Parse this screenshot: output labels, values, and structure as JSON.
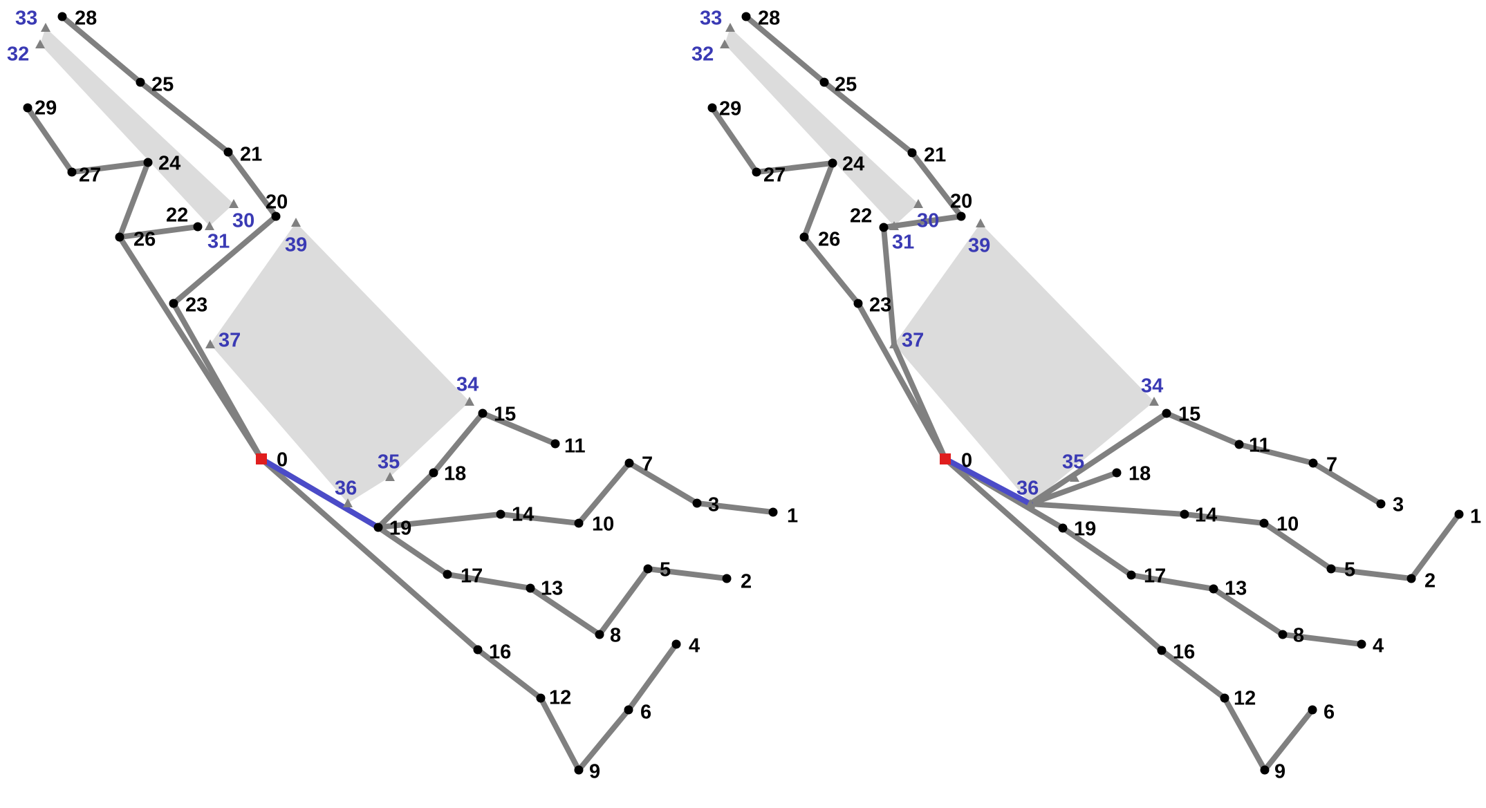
{
  "colors": {
    "edge": "#808080",
    "highlight_edge": "#4b4bc8",
    "region": "#dcdcdc",
    "node": "#000000",
    "triangle": "#808080",
    "root": "#e01e1e",
    "label": "#000000",
    "blue_label": "#3a3ab4"
  },
  "panels": [
    {
      "name": "left-panel",
      "nodes": [
        {
          "id": "0",
          "type": "root",
          "label": "0"
        },
        {
          "id": "1",
          "type": "dot",
          "label": "1"
        },
        {
          "id": "2",
          "type": "dot",
          "label": "2"
        },
        {
          "id": "3",
          "type": "dot",
          "label": "3"
        },
        {
          "id": "4",
          "type": "dot",
          "label": "4"
        },
        {
          "id": "5",
          "type": "dot",
          "label": "5"
        },
        {
          "id": "6",
          "type": "dot",
          "label": "6"
        },
        {
          "id": "7",
          "type": "dot",
          "label": "7"
        },
        {
          "id": "8",
          "type": "dot",
          "label": "8"
        },
        {
          "id": "9",
          "type": "dot",
          "label": "9"
        },
        {
          "id": "10",
          "type": "dot",
          "label": "10"
        },
        {
          "id": "11",
          "type": "dot",
          "label": "11"
        },
        {
          "id": "12",
          "type": "dot",
          "label": "12"
        },
        {
          "id": "13",
          "type": "dot",
          "label": "13"
        },
        {
          "id": "14",
          "type": "dot",
          "label": "14"
        },
        {
          "id": "15",
          "type": "dot",
          "label": "15"
        },
        {
          "id": "16",
          "type": "dot",
          "label": "16"
        },
        {
          "id": "17",
          "type": "dot",
          "label": "17"
        },
        {
          "id": "18",
          "type": "dot",
          "label": "18"
        },
        {
          "id": "19",
          "type": "dot",
          "label": "19"
        },
        {
          "id": "20",
          "type": "dot",
          "label": "20"
        },
        {
          "id": "21",
          "type": "dot",
          "label": "21"
        },
        {
          "id": "22",
          "type": "dot",
          "label": "22"
        },
        {
          "id": "23",
          "type": "dot",
          "label": "23"
        },
        {
          "id": "24",
          "type": "dot",
          "label": "24"
        },
        {
          "id": "25",
          "type": "dot",
          "label": "25"
        },
        {
          "id": "26",
          "type": "dot",
          "label": "26"
        },
        {
          "id": "27",
          "type": "dot",
          "label": "27"
        },
        {
          "id": "28",
          "type": "dot",
          "label": "28"
        },
        {
          "id": "29",
          "type": "dot",
          "label": "29"
        },
        {
          "id": "30",
          "type": "triangle",
          "label": "30"
        },
        {
          "id": "31",
          "type": "triangle",
          "label": "31"
        },
        {
          "id": "32",
          "type": "triangle",
          "label": "32"
        },
        {
          "id": "33",
          "type": "triangle",
          "label": "33"
        },
        {
          "id": "34",
          "type": "triangle",
          "label": "34"
        },
        {
          "id": "35",
          "type": "triangle",
          "label": "35"
        },
        {
          "id": "36",
          "type": "triangle",
          "label": "36"
        },
        {
          "id": "37",
          "type": "triangle",
          "label": "37"
        },
        {
          "id": "39",
          "type": "triangle",
          "label": "39"
        }
      ],
      "edges": [
        [
          "0",
          "26"
        ],
        [
          "26",
          "24"
        ],
        [
          "24",
          "27"
        ],
        [
          "27",
          "29"
        ],
        [
          "26",
          "22"
        ],
        [
          "0",
          "23"
        ],
        [
          "23",
          "20"
        ],
        [
          "20",
          "21"
        ],
        [
          "21",
          "25"
        ],
        [
          "25",
          "28"
        ],
        [
          "0",
          "19"
        ],
        [
          "19",
          "18"
        ],
        [
          "18",
          "15"
        ],
        [
          "15",
          "11"
        ],
        [
          "19",
          "14"
        ],
        [
          "14",
          "10"
        ],
        [
          "10",
          "7"
        ],
        [
          "7",
          "3"
        ],
        [
          "3",
          "1"
        ],
        [
          "19",
          "17"
        ],
        [
          "17",
          "13"
        ],
        [
          "13",
          "8"
        ],
        [
          "8",
          "5"
        ],
        [
          "5",
          "2"
        ],
        [
          "0",
          "16"
        ],
        [
          "16",
          "12"
        ],
        [
          "12",
          "9"
        ],
        [
          "9",
          "6"
        ],
        [
          "6",
          "4"
        ]
      ],
      "highlight_edges": [
        [
          "0",
          "19"
        ]
      ],
      "regions": [
        [
          "33",
          "32",
          "31",
          "30"
        ],
        [
          "39",
          "34",
          "35",
          "36",
          "37"
        ]
      ]
    },
    {
      "name": "right-panel",
      "nodes": [
        {
          "id": "0",
          "type": "root",
          "label": "0"
        },
        {
          "id": "1",
          "type": "dot",
          "label": "1"
        },
        {
          "id": "2",
          "type": "dot",
          "label": "2"
        },
        {
          "id": "3",
          "type": "dot",
          "label": "3"
        },
        {
          "id": "4",
          "type": "dot",
          "label": "4"
        },
        {
          "id": "5",
          "type": "dot",
          "label": "5"
        },
        {
          "id": "6",
          "type": "dot",
          "label": "6"
        },
        {
          "id": "7",
          "type": "dot",
          "label": "7"
        },
        {
          "id": "8",
          "type": "dot",
          "label": "8"
        },
        {
          "id": "9",
          "type": "dot",
          "label": "9"
        },
        {
          "id": "10",
          "type": "dot",
          "label": "10"
        },
        {
          "id": "11",
          "type": "dot",
          "label": "11"
        },
        {
          "id": "12",
          "type": "dot",
          "label": "12"
        },
        {
          "id": "13",
          "type": "dot",
          "label": "13"
        },
        {
          "id": "14",
          "type": "dot",
          "label": "14"
        },
        {
          "id": "15",
          "type": "dot",
          "label": "15"
        },
        {
          "id": "16",
          "type": "dot",
          "label": "16"
        },
        {
          "id": "17",
          "type": "dot",
          "label": "17"
        },
        {
          "id": "18",
          "type": "dot",
          "label": "18"
        },
        {
          "id": "19",
          "type": "dot",
          "label": "19"
        },
        {
          "id": "20",
          "type": "dot",
          "label": "20"
        },
        {
          "id": "21",
          "type": "dot",
          "label": "21"
        },
        {
          "id": "22",
          "type": "dot",
          "label": "22"
        },
        {
          "id": "23",
          "type": "dot",
          "label": "23"
        },
        {
          "id": "24",
          "type": "dot",
          "label": "24"
        },
        {
          "id": "25",
          "type": "dot",
          "label": "25"
        },
        {
          "id": "26",
          "type": "dot",
          "label": "26"
        },
        {
          "id": "27",
          "type": "dot",
          "label": "27"
        },
        {
          "id": "28",
          "type": "dot",
          "label": "28"
        },
        {
          "id": "29",
          "type": "dot",
          "label": "29"
        },
        {
          "id": "30",
          "type": "triangle",
          "label": "30"
        },
        {
          "id": "31",
          "type": "triangle",
          "label": "31"
        },
        {
          "id": "32",
          "type": "triangle",
          "label": "32"
        },
        {
          "id": "33",
          "type": "triangle",
          "label": "33"
        },
        {
          "id": "34",
          "type": "triangle",
          "label": "34"
        },
        {
          "id": "35",
          "type": "triangle",
          "label": "35"
        },
        {
          "id": "36",
          "type": "triangle",
          "label": "36"
        },
        {
          "id": "37",
          "type": "triangle",
          "label": "37"
        },
        {
          "id": "39",
          "type": "triangle",
          "label": "39"
        }
      ],
      "edges": [
        [
          "0",
          "23"
        ],
        [
          "23",
          "26"
        ],
        [
          "26",
          "24"
        ],
        [
          "24",
          "27"
        ],
        [
          "27",
          "29"
        ],
        [
          "0",
          "37"
        ],
        [
          "37",
          "22"
        ],
        [
          "22",
          "20"
        ],
        [
          "20",
          "21"
        ],
        [
          "21",
          "25"
        ],
        [
          "25",
          "28"
        ],
        [
          "0",
          "19"
        ],
        [
          "19",
          "17"
        ],
        [
          "17",
          "13"
        ],
        [
          "13",
          "8"
        ],
        [
          "8",
          "4"
        ],
        [
          "0",
          "16"
        ],
        [
          "16",
          "12"
        ],
        [
          "12",
          "9"
        ],
        [
          "9",
          "6"
        ],
        [
          "36",
          "18"
        ],
        [
          "36",
          "15"
        ],
        [
          "15",
          "11"
        ],
        [
          "11",
          "7"
        ],
        [
          "7",
          "3"
        ],
        [
          "36",
          "14"
        ],
        [
          "14",
          "10"
        ],
        [
          "10",
          "5"
        ],
        [
          "5",
          "2"
        ],
        [
          "2",
          "1"
        ]
      ],
      "highlight_edges": [
        [
          "0",
          "36"
        ]
      ],
      "regions": [
        [
          "33",
          "32",
          "31",
          "30"
        ],
        [
          "39",
          "34",
          "36",
          "37"
        ]
      ]
    }
  ]
}
